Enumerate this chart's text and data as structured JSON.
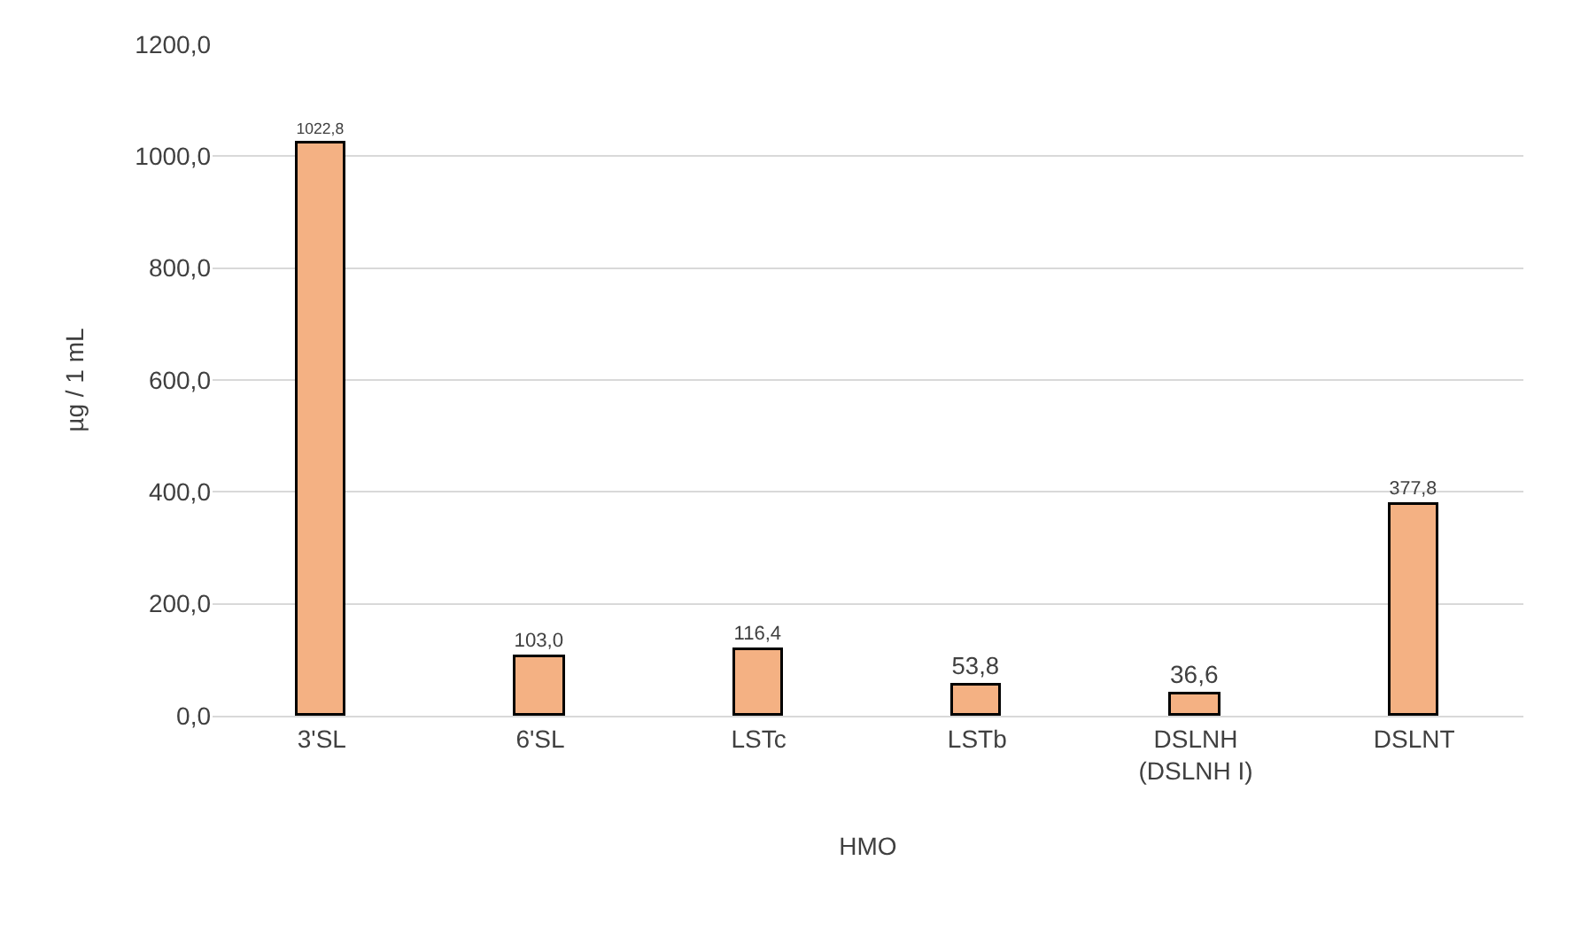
{
  "chart_data": {
    "type": "bar",
    "xlabel": "HMO",
    "ylabel": "µg / 1 mL",
    "categories": [
      "3'SL",
      "6'SL",
      "LSTc",
      "LSTb",
      "DSLNH\n(DSLNH I)",
      "DSLNT"
    ],
    "values": [
      1022.8,
      103.0,
      116.4,
      53.8,
      36.6,
      377.8
    ],
    "value_labels": [
      "1022,8",
      "103,0",
      "116,4",
      "53,8",
      "36,6",
      "377,8"
    ],
    "color": "#f4b183",
    "ylim": [
      0,
      1200
    ],
    "yticks": [
      {
        "value": 0,
        "label": "0,0"
      },
      {
        "value": 200,
        "label": "200,0"
      },
      {
        "value": 400,
        "label": "400,0"
      },
      {
        "value": 600,
        "label": "600,0"
      },
      {
        "value": 800,
        "label": "800,0"
      },
      {
        "value": 1000,
        "label": "1000,0"
      },
      {
        "value": 1200,
        "label": "1200,0"
      }
    ],
    "grid": "y",
    "legend": false
  }
}
